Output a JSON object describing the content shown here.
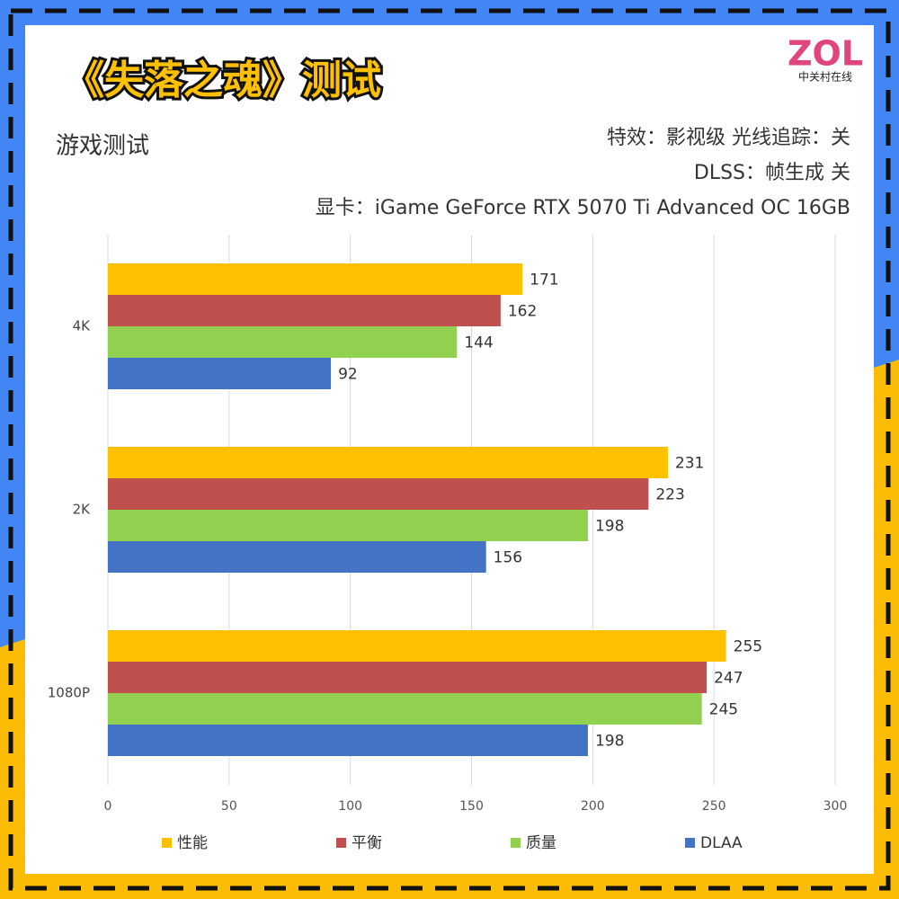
{
  "chart_data": {
    "type": "bar",
    "orientation": "horizontal",
    "title": "《失落之魂》测试",
    "subtitle": "游戏测试",
    "annotations": [
      "特效：影视级 光线追踪：关",
      "DLSS：帧生成 关",
      "显卡：iGame GeForce RTX 5070 Ti Advanced OC 16GB"
    ],
    "categories": [
      "4K",
      "2K",
      "1080P"
    ],
    "series": [
      {
        "name": "性能",
        "color": "#FFC000",
        "values": [
          171,
          231,
          255
        ]
      },
      {
        "name": "平衡",
        "color": "#C0504D",
        "values": [
          162,
          223,
          247
        ]
      },
      {
        "name": "质量",
        "color": "#92D050",
        "values": [
          144,
          198,
          245
        ]
      },
      {
        "name": "DLAA",
        "color": "#4472C4",
        "values": [
          92,
          156,
          198
        ]
      }
    ],
    "xlim": [
      0,
      300
    ],
    "xticks": [
      0,
      50,
      100,
      150,
      200,
      250,
      300
    ],
    "grid": true,
    "legend": "bottom"
  },
  "logo": {
    "text": "ZOL",
    "subtext": "中关村在线"
  }
}
